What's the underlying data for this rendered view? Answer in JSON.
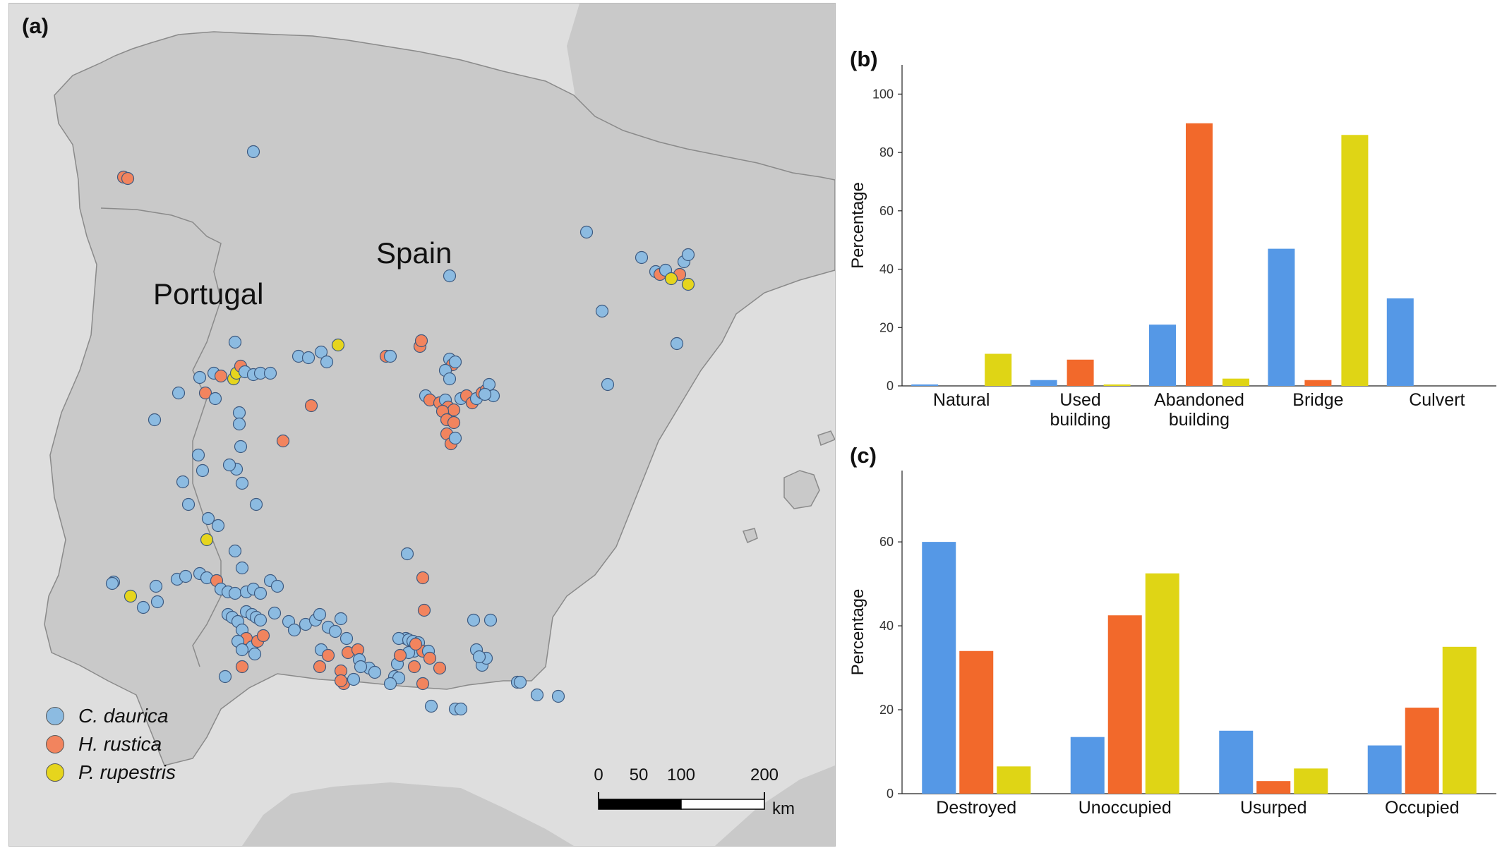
{
  "panels": {
    "a_label": "(a)",
    "b_label": "(b)",
    "c_label": "(c)"
  },
  "map": {
    "country_labels": {
      "portugal": "Portugal",
      "spain": "Spain"
    },
    "colors": {
      "land": "#c9c9c9",
      "sea": "#dedede",
      "border": "#8a8a8a"
    },
    "legend": [
      {
        "name": "C. daurica",
        "color": "#8cbbe1"
      },
      {
        "name": "H. rustica",
        "color": "#f2845e"
      },
      {
        "name": "P. rupestris",
        "color": "#e6d51d"
      }
    ],
    "scale_bar": {
      "labels": [
        "0",
        "50",
        "100",
        "200"
      ],
      "unit": "km"
    }
  },
  "chart_b": {
    "ylabel": "Percentage",
    "chart_data": {
      "type": "bar",
      "categories": [
        "Natural",
        "Used building",
        "Abandoned building",
        "Bridge",
        "Culvert"
      ],
      "ylim": [
        0,
        110
      ],
      "yticks": [
        0,
        20,
        40,
        60,
        80,
        100
      ],
      "series": [
        {
          "name": "C. daurica",
          "color": "#5598e6",
          "values": [
            0.5,
            2,
            21,
            47,
            30
          ]
        },
        {
          "name": "H. rustica",
          "color": "#f2692b",
          "values": [
            0,
            9,
            90,
            2,
            0
          ]
        },
        {
          "name": "P. rupestris",
          "color": "#dfd515",
          "values": [
            11,
            0.5,
            2.5,
            86,
            0
          ]
        }
      ]
    }
  },
  "chart_c": {
    "ylabel": "Percentage",
    "chart_data": {
      "type": "bar",
      "categories": [
        "Destroyed",
        "Unoccupied",
        "Usurped",
        "Occupied"
      ],
      "ylim": [
        0,
        77
      ],
      "yticks": [
        0,
        20,
        40,
        60
      ],
      "series": [
        {
          "name": "C. daurica",
          "color": "#5598e6",
          "values": [
            60,
            13.5,
            15,
            11.5
          ]
        },
        {
          "name": "H. rustica",
          "color": "#f2692b",
          "values": [
            34,
            42.5,
            3,
            20.5
          ]
        },
        {
          "name": "P. rupestris",
          "color": "#dfd515",
          "values": [
            6.5,
            52.5,
            6,
            35
          ]
        }
      ]
    }
  }
}
